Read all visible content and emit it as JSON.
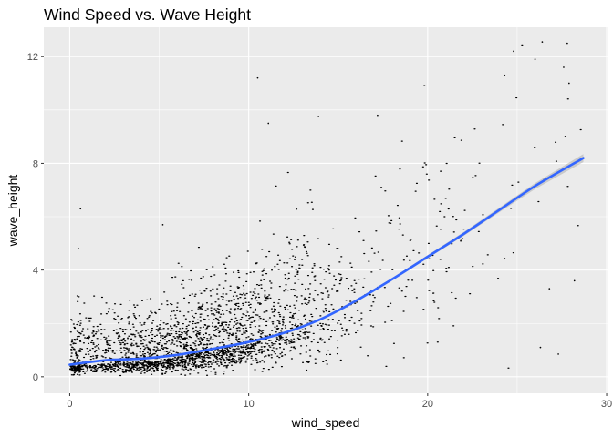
{
  "chart_data": {
    "type": "scatter",
    "title": "Wind Speed vs. Wave Height",
    "xlabel": "wind_speed",
    "ylabel": "wave_height",
    "xlim": [
      -1.45,
      30.1
    ],
    "ylim": [
      -0.62,
      13.1
    ],
    "x_ticks": [
      0,
      10,
      20,
      30
    ],
    "x_tick_labels": [
      "0",
      "10",
      "20",
      "30"
    ],
    "y_ticks": [
      0,
      4,
      8,
      12
    ],
    "y_tick_labels": [
      "0",
      "4",
      "8",
      "12"
    ],
    "grid": true,
    "background": "#ebebeb",
    "point_color": "#000000",
    "smooth_color": "#3366ff",
    "ribbon_color": "#999999",
    "point_count_approx": 45000,
    "density_profile": [
      {
        "x": 0,
        "median": 0.4,
        "spread_low": 0.1,
        "spread_high": 2.5
      },
      {
        "x": 5,
        "median": 0.6,
        "spread_low": 0.1,
        "spread_high": 3.0
      },
      {
        "x": 10,
        "median": 1.3,
        "spread_low": 0.2,
        "spread_high": 4.5
      },
      {
        "x": 15,
        "median": 2.5,
        "spread_low": 0.4,
        "spread_high": 7.0
      },
      {
        "x": 20,
        "median": 4.6,
        "spread_low": 1.0,
        "spread_high": 10.5
      },
      {
        "x": 25,
        "median": 6.5,
        "spread_low": 0.8,
        "spread_high": 12.3
      },
      {
        "x": 28.7,
        "median": 8.2,
        "spread_low": 1.0,
        "spread_high": 12.6
      }
    ],
    "outliers": [
      {
        "x": 10.5,
        "y": 11.2
      },
      {
        "x": 11.1,
        "y": 9.5
      },
      {
        "x": 13.9,
        "y": 9.75
      },
      {
        "x": 17.2,
        "y": 9.8
      },
      {
        "x": 0.6,
        "y": 6.3
      },
      {
        "x": 0.5,
        "y": 4.8
      },
      {
        "x": 5.2,
        "y": 5.7
      },
      {
        "x": 24.8,
        "y": 12.2
      },
      {
        "x": 26.4,
        "y": 12.55
      },
      {
        "x": 27.8,
        "y": 12.5
      },
      {
        "x": 27.6,
        "y": 11.6
      },
      {
        "x": 26.0,
        "y": 11.9
      },
      {
        "x": 24.3,
        "y": 11.3
      },
      {
        "x": 27.9,
        "y": 11.0
      },
      {
        "x": 26.3,
        "y": 1.1
      },
      {
        "x": 27.3,
        "y": 0.85
      },
      {
        "x": 26.8,
        "y": 3.3
      },
      {
        "x": 28.2,
        "y": 3.6
      }
    ],
    "smooth_line": {
      "x": [
        0,
        2,
        4,
        6,
        8,
        10,
        12,
        14,
        16,
        18,
        20,
        22,
        24,
        26,
        28.7
      ],
      "y": [
        0.45,
        0.62,
        0.68,
        0.82,
        1.05,
        1.3,
        1.65,
        2.15,
        2.85,
        3.65,
        4.5,
        5.35,
        6.25,
        7.15,
        8.2
      ]
    }
  }
}
